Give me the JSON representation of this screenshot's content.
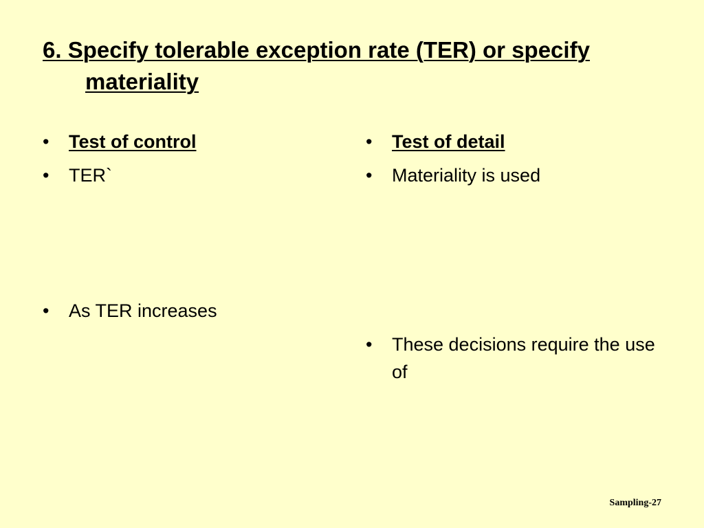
{
  "slide": {
    "title_line1": "6.  Specify tolerable exception rate (TER) or specify",
    "title_line2": "materiality",
    "left_column": {
      "heading": "Test of control",
      "items": [
        "TER`",
        "As TER increases"
      ]
    },
    "right_column": {
      "heading": "Test of detail",
      "items": [
        "Materiality is used",
        "These decisions require the use of"
      ]
    },
    "footer": "Sampling-27",
    "bullet_char": "•",
    "colors": {
      "background": "#ffffcc",
      "text": "#000000"
    }
  }
}
